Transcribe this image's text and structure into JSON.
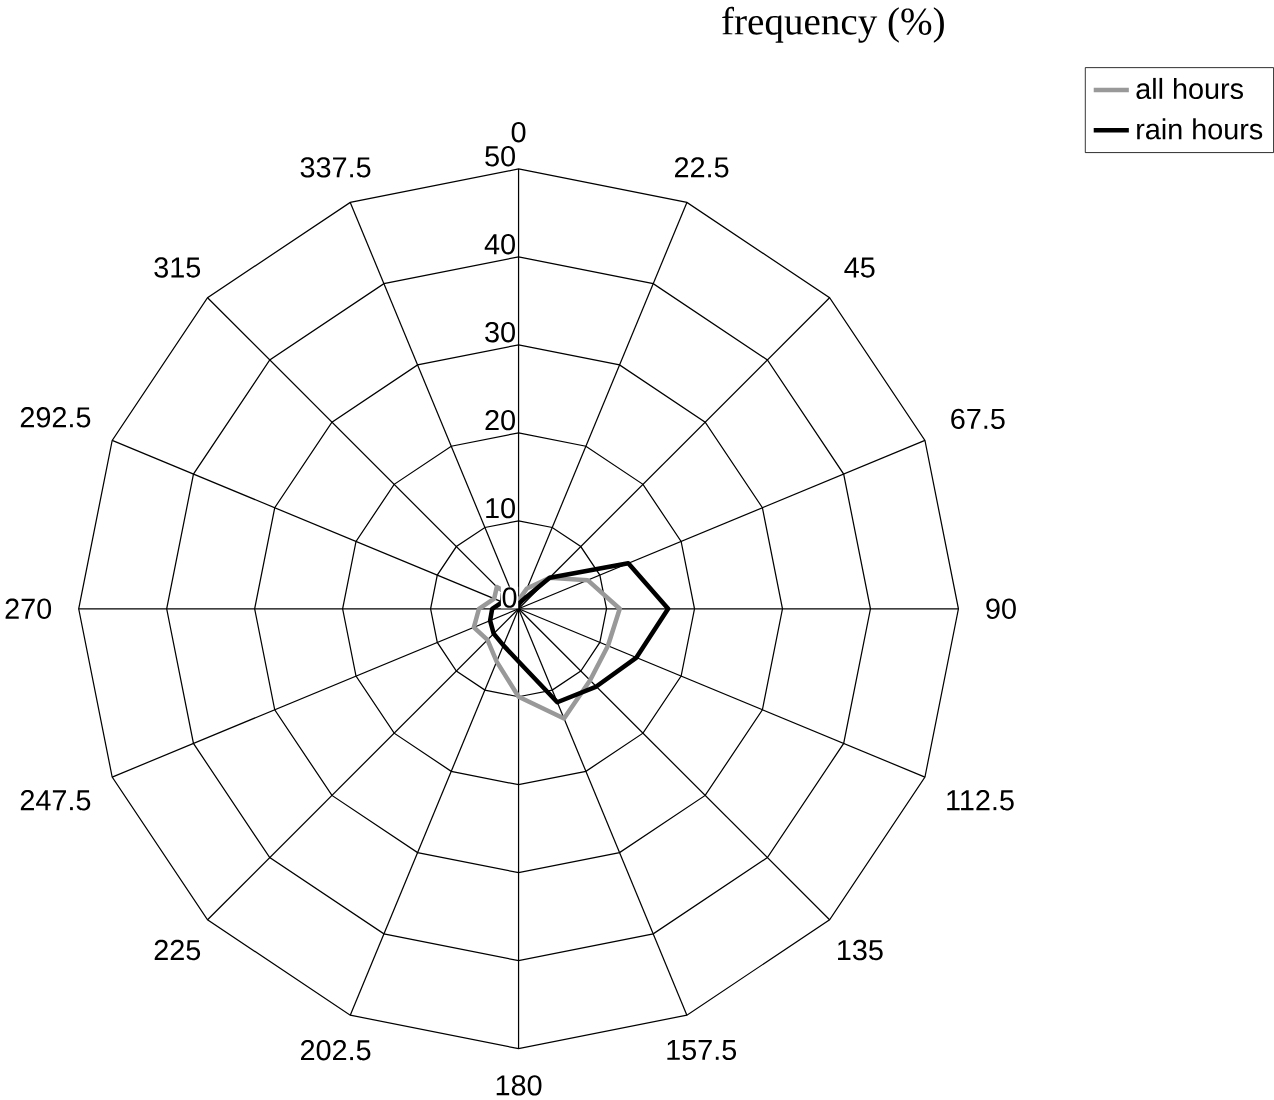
{
  "chart_data": {
    "type": "radar",
    "ylabel": "frequency (%)",
    "categories": [
      "0",
      "22.5",
      "45",
      "67.5",
      "90",
      "112.5",
      "135",
      "157.5",
      "180",
      "202.5",
      "225",
      "247.5",
      "270",
      "292.5",
      "315",
      "337.5"
    ],
    "series": [
      {
        "name": "all hours",
        "color": "#999999",
        "values": [
          1,
          2.5,
          5,
          8.5,
          11.5,
          11,
          11.5,
          13.5,
          10,
          6.5,
          5,
          5.5,
          4.5,
          3,
          3.5,
          1.5
        ]
      },
      {
        "name": "rain hours",
        "color": "#000000",
        "values": [
          0.5,
          1,
          5,
          13.5,
          17,
          14.5,
          12.5,
          11.5,
          6,
          4.5,
          4,
          3.5,
          3,
          2,
          2.5,
          1
        ]
      }
    ],
    "ylim": [
      0,
      50
    ],
    "yticks": [
      0,
      10,
      20,
      30,
      40,
      50
    ],
    "grid": true,
    "legend": "top right",
    "line_style": "solid",
    "marker": "none"
  }
}
